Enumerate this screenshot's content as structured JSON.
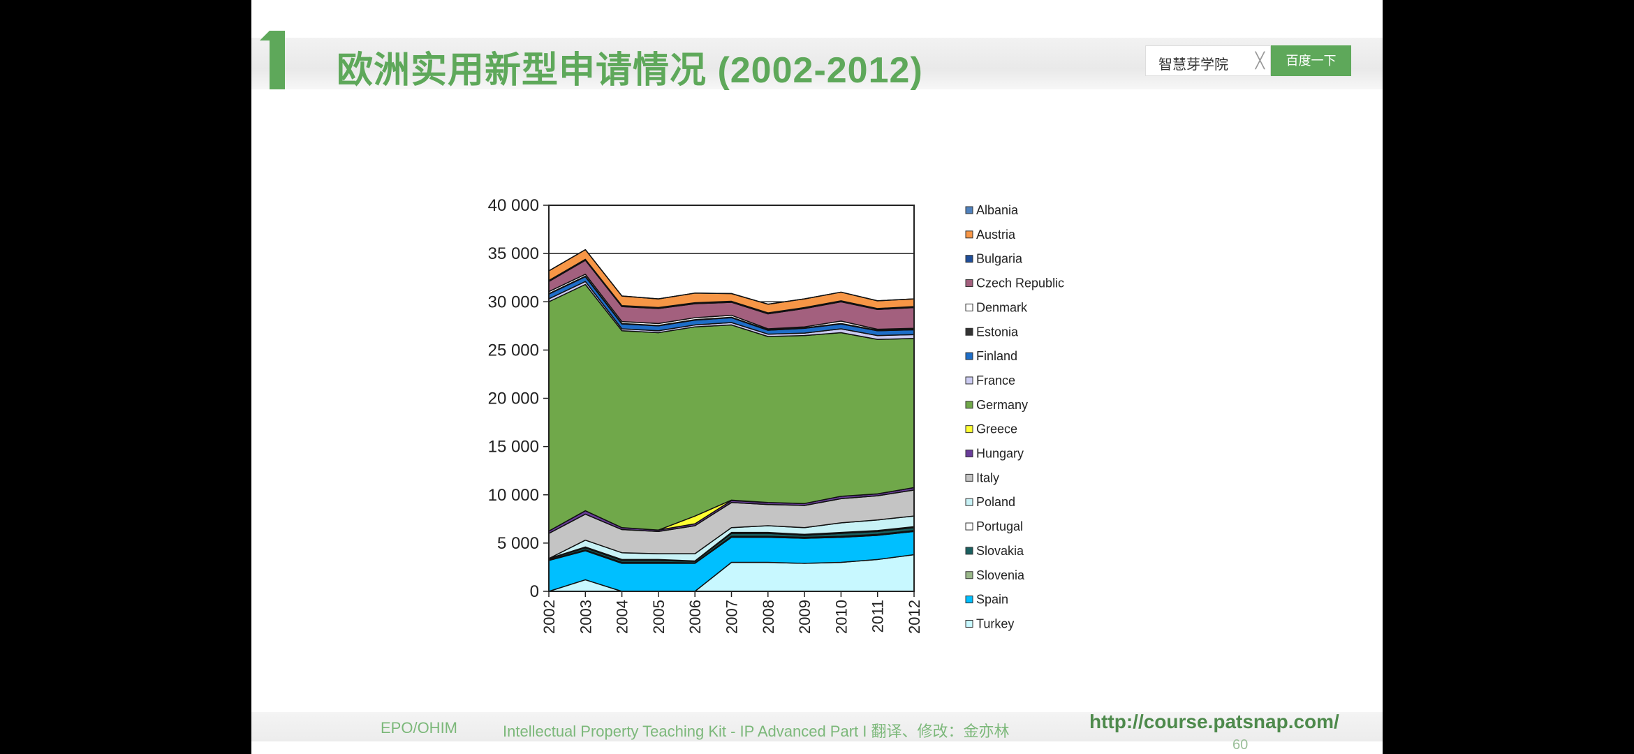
{
  "header": {
    "title": "欧洲实用新型申请情况 (2002-2012)",
    "number_badge": "1"
  },
  "search": {
    "query": "智慧芽学院",
    "clear_label": "╳",
    "button_label": "百度一下"
  },
  "footer": {
    "org": "EPO/OHIM",
    "kit": "Intellectual Property Teaching Kit - IP Advanced Part I 翻译、修改：金亦林",
    "url": "http://course.patsnap.com/",
    "page": "60"
  },
  "chart_data": {
    "type": "area",
    "stacked": true,
    "title": "",
    "xlabel": "",
    "ylabel": "",
    "ylim": [
      0,
      40000
    ],
    "yticks": [
      0,
      5000,
      10000,
      15000,
      20000,
      25000,
      30000,
      35000,
      40000
    ],
    "ytick_labels": [
      "0",
      "5 000",
      "10 000",
      "15 000",
      "20 000",
      "25 000",
      "30 000",
      "35 000",
      "40 000"
    ],
    "categories": [
      "2002",
      "2003",
      "2004",
      "2005",
      "2006",
      "2007",
      "2008",
      "2009",
      "2010",
      "2011",
      "2012"
    ],
    "legend_position": "right",
    "series": [
      {
        "name": "Albania",
        "color": "#4f81bd",
        "values": [
          0,
          0,
          0,
          0,
          0,
          0,
          0,
          0,
          0,
          0,
          0
        ]
      },
      {
        "name": "Austria",
        "color": "#f79646",
        "values": [
          1000,
          1000,
          1000,
          900,
          1000,
          800,
          900,
          900,
          900,
          800,
          800
        ]
      },
      {
        "name": "Bulgaria",
        "color": "#1f4e9a",
        "values": [
          100,
          100,
          100,
          100,
          100,
          100,
          100,
          100,
          100,
          100,
          100
        ]
      },
      {
        "name": "Czech Republic",
        "color": "#a3607e",
        "values": [
          1050,
          1450,
          1550,
          1550,
          1450,
          1350,
          1550,
          1900,
          2000,
          2050,
          2150
        ]
      },
      {
        "name": "Denmark",
        "color": "#ffffff",
        "values": [
          200,
          200,
          200,
          200,
          200,
          200,
          100,
          100,
          250,
          100,
          100
        ]
      },
      {
        "name": "Estonia",
        "color": "#333333",
        "values": [
          50,
          50,
          50,
          50,
          50,
          50,
          50,
          50,
          50,
          50,
          50
        ]
      },
      {
        "name": "Finland",
        "color": "#1e6ec8",
        "values": [
          500,
          500,
          500,
          500,
          500,
          500,
          400,
          500,
          500,
          500,
          500
        ]
      },
      {
        "name": "France",
        "color": "#ccccf2",
        "values": [
          300,
          300,
          200,
          200,
          200,
          250,
          250,
          250,
          400,
          400,
          400
        ]
      },
      {
        "name": "Germany",
        "color": "#70a84a",
        "values": [
          23750,
          23450,
          20400,
          20450,
          19600,
          18150,
          17200,
          17400,
          16950,
          16000,
          15450
        ]
      },
      {
        "name": "Greece",
        "color": "#ffff33",
        "values": [
          0,
          0,
          0,
          0,
          800,
          50,
          0,
          0,
          0,
          0,
          0
        ]
      },
      {
        "name": "Hungary",
        "color": "#6a3d9a",
        "values": [
          250,
          350,
          200,
          150,
          200,
          200,
          200,
          200,
          250,
          200,
          250
        ]
      },
      {
        "name": "Italy",
        "color": "#c4c4c4",
        "values": [
          2600,
          2700,
          2400,
          2300,
          2900,
          2600,
          2200,
          2300,
          2500,
          2500,
          2700
        ]
      },
      {
        "name": "Poland",
        "color": "#c8f2f6",
        "values": [
          0,
          700,
          700,
          600,
          750,
          500,
          700,
          700,
          1000,
          1100,
          1100
        ]
      },
      {
        "name": "Portugal",
        "color": "#ffffff",
        "values": [
          50,
          100,
          100,
          100,
          50,
          100,
          100,
          100,
          100,
          100,
          100
        ]
      },
      {
        "name": "Slovakia",
        "color": "#1a6060",
        "values": [
          100,
          200,
          200,
          200,
          150,
          300,
          300,
          200,
          300,
          300,
          300
        ]
      },
      {
        "name": "Slovenia",
        "color": "#9ab88a",
        "values": [
          50,
          100,
          100,
          100,
          50,
          100,
          100,
          100,
          100,
          100,
          100
        ]
      },
      {
        "name": "Spain",
        "color": "#00bfff",
        "values": [
          3200,
          3000,
          2900,
          2900,
          2900,
          2600,
          2600,
          2600,
          2600,
          2500,
          2400
        ]
      },
      {
        "name": "Turkey",
        "color": "#c8f8ff",
        "values": [
          0,
          1200,
          0,
          0,
          0,
          3000,
          3000,
          2900,
          3000,
          3300,
          3800
        ]
      }
    ]
  }
}
